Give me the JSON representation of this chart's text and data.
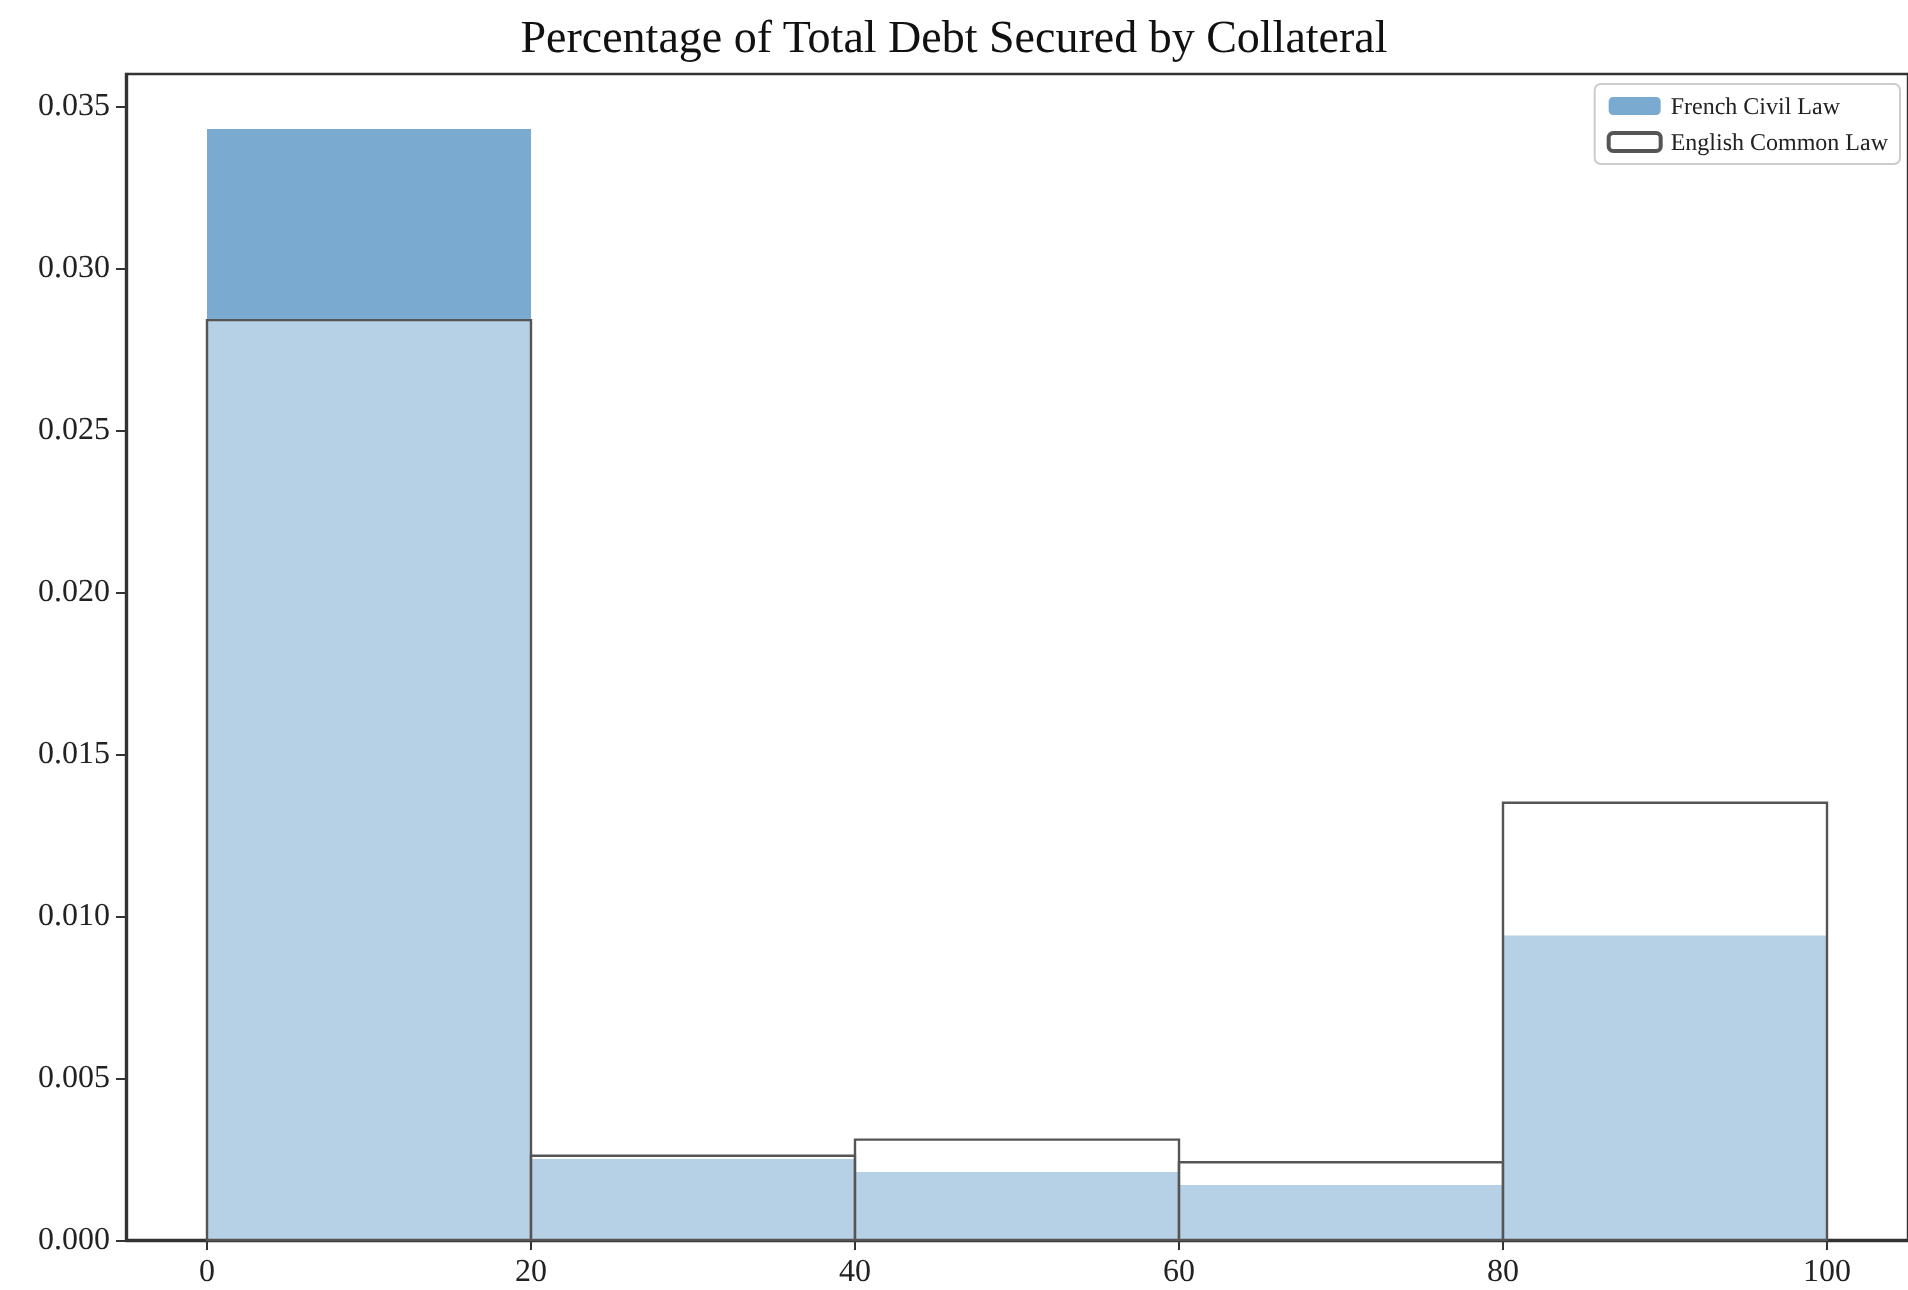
{
  "chart_data": {
    "type": "histogram",
    "title": "Percentage of Total Debt Secured by Collateral",
    "bins": [
      0,
      20,
      40,
      60,
      80,
      100
    ],
    "series": [
      {
        "name": "French Civil Law",
        "color": "#7aaacf",
        "values": [
          0.0343,
          0.0025,
          0.0021,
          0.0017,
          0.0094
        ]
      },
      {
        "name": "English Common Law",
        "color": "#ffffff",
        "values": [
          0.0284,
          0.0026,
          0.0031,
          0.0024,
          0.0135
        ]
      }
    ],
    "xlim": [
      -5,
      105
    ],
    "xticks": [
      0,
      20,
      40,
      60,
      80,
      100
    ],
    "ylim": [
      0,
      0.036
    ],
    "yticks": [
      {
        "value": 0,
        "label": "0.000"
      },
      {
        "value": 0.005,
        "label": "0.005"
      },
      {
        "value": 0.01,
        "label": "0.010"
      },
      {
        "value": 0.015,
        "label": "0.015"
      },
      {
        "value": 0.02,
        "label": "0.020"
      },
      {
        "value": 0.025,
        "label": "0.025"
      },
      {
        "value": 0.03,
        "label": "0.030"
      },
      {
        "value": 0.035,
        "label": "0.035"
      }
    ],
    "grid": false,
    "legend": "top right"
  }
}
